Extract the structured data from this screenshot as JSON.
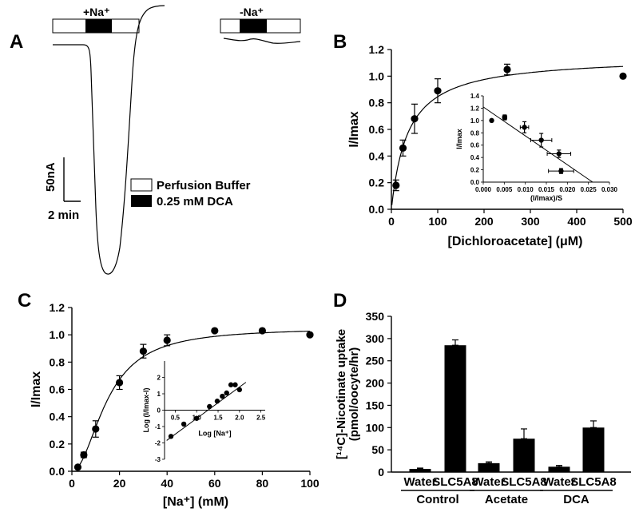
{
  "figure": {
    "panels": [
      "A",
      "B",
      "C",
      "D"
    ]
  },
  "trace": {
    "plus_na_label": "+Na⁺",
    "minus_na_label": "-Na⁺",
    "scale_current": "50nA",
    "scale_time": "2 min",
    "legend": [
      "Perfusion Buffer",
      "0.25 mM DCA"
    ]
  },
  "chart_data": [
    {
      "panel": "B",
      "type": "scatter",
      "xlabel": "[Dichloroacetate] (μM)",
      "ylabel": "I/Imax",
      "xlim": [
        0,
        500
      ],
      "ylim": [
        0,
        1.2
      ],
      "xticks": [
        0,
        100,
        200,
        300,
        400,
        500
      ],
      "yticks": [
        0.0,
        0.2,
        0.4,
        0.6,
        0.8,
        1.0,
        1.2
      ],
      "x": [
        10,
        25,
        50,
        100,
        250,
        500
      ],
      "y": [
        0.18,
        0.46,
        0.68,
        0.89,
        1.05,
        1.0
      ],
      "err": [
        0.04,
        0.06,
        0.11,
        0.09,
        0.04,
        0.0
      ],
      "fit": {
        "model": "michaelis-menten",
        "vmax": 1.15,
        "km": 36
      },
      "inset": {
        "type": "scatter",
        "xlabel": "(I/Imax)/S",
        "ylabel": "I/Imax",
        "xlim": [
          0,
          0.03
        ],
        "ylim": [
          0,
          1.4
        ],
        "xticks": [
          "0.000",
          "0.005",
          "0.010",
          "0.015",
          "0.020",
          "0.025",
          "0.030"
        ],
        "yticks": [
          "0.0",
          "0.2",
          "0.4",
          "0.6",
          "0.8",
          "1.0",
          "1.2",
          "1.4"
        ],
        "x": [
          0.002,
          0.0051,
          0.0098,
          0.0138,
          0.018,
          0.0185
        ],
        "y": [
          1.0,
          1.05,
          0.89,
          0.68,
          0.46,
          0.18
        ],
        "yerr": [
          0.0,
          0.04,
          0.09,
          0.11,
          0.06,
          0.04
        ],
        "xerr": [
          0.0,
          0.0005,
          0.001,
          0.0025,
          0.0028,
          0.003
        ],
        "fit_line": {
          "x0": 0.0,
          "y0": 1.22,
          "x1": 0.026,
          "y1": 0.0
        }
      }
    },
    {
      "panel": "C",
      "type": "scatter",
      "xlabel": "[Na⁺] (mM)",
      "ylabel": "I/Imax",
      "xlim": [
        0,
        100
      ],
      "ylim": [
        0,
        1.2
      ],
      "xticks": [
        0,
        20,
        40,
        60,
        80,
        100
      ],
      "yticks": [
        0.0,
        0.2,
        0.4,
        0.6,
        0.8,
        1.0,
        1.2
      ],
      "x": [
        2.5,
        5,
        10,
        20,
        30,
        40,
        60,
        80,
        100
      ],
      "y": [
        0.03,
        0.12,
        0.31,
        0.65,
        0.88,
        0.96,
        1.03,
        1.03,
        1.0
      ],
      "err": [
        0.0,
        0.02,
        0.06,
        0.05,
        0.05,
        0.04,
        0.0,
        0.0,
        0.0
      ],
      "fit": {
        "model": "hill",
        "vmax": 1.05,
        "k": 15,
        "n": 2
      },
      "inset": {
        "type": "scatter",
        "xlabel": "Log [Na⁺]",
        "ylabel": "Log (I/Imax-I)",
        "xlim": [
          0.25,
          2.6
        ],
        "ylim": [
          -3,
          3
        ],
        "xticks": [
          "0.5",
          "1.0",
          "1.5",
          "2.0",
          "2.5"
        ],
        "yticks": [
          "-3",
          "-2",
          "-1",
          "0",
          "1",
          "2"
        ],
        "x": [
          0.4,
          0.7,
          1.0,
          1.3,
          1.48,
          1.6,
          1.7,
          1.8,
          1.9,
          2.0
        ],
        "y": [
          -1.6,
          -0.85,
          -0.5,
          0.22,
          0.55,
          0.85,
          1.05,
          1.55,
          1.55,
          1.25
        ],
        "fit_line": {
          "x0": 0.3,
          "y0": -1.85,
          "x1": 2.15,
          "y1": 1.7
        }
      }
    },
    {
      "panel": "D",
      "type": "bar",
      "ylabel": "[¹⁴C]-Nicotinate uptake (pmol/oocyte/hr)",
      "ylabel_line1": "[¹⁴C]-Nicotinate uptake",
      "ylabel_line2": "(pmol/oocyte/hr)",
      "ylim": [
        0,
        350
      ],
      "yticks": [
        0,
        50,
        100,
        150,
        200,
        250,
        300,
        350
      ],
      "categories": [
        "Water",
        "SLC5A8",
        "Water",
        "SLC5A8",
        "Water",
        "SLC5A8"
      ],
      "groups": [
        "Control",
        "Acetate",
        "DCA"
      ],
      "values": [
        7,
        285,
        20,
        75,
        12,
        100
      ],
      "err": [
        2,
        12,
        3,
        22,
        3,
        15
      ]
    }
  ]
}
